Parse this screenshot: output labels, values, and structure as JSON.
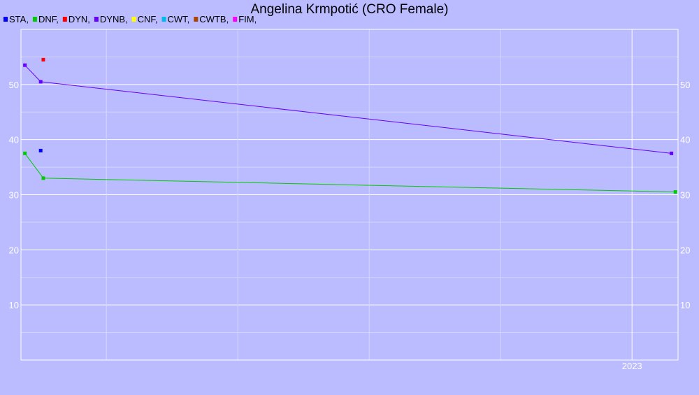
{
  "chart_data": {
    "type": "line",
    "title": "Angelina Krmpotić (CRO Female)",
    "legend": [
      {
        "label": "STA,",
        "color": "#0000ff"
      },
      {
        "label": "DNF,",
        "color": "#00cc00"
      },
      {
        "label": "DYN,",
        "color": "#ff0000"
      },
      {
        "label": "DYNB,",
        "color": "#6600ff"
      },
      {
        "label": "CNF,",
        "color": "#ffff00"
      },
      {
        "label": "CWT,",
        "color": "#00bbee"
      },
      {
        "label": "CWTB,",
        "color": "#aa4400"
      },
      {
        "label": "FIM,",
        "color": "#ff00ff"
      }
    ],
    "legend_position": "top-left",
    "y_ticks": [
      "10",
      "20",
      "30",
      "40",
      "50"
    ],
    "y_tick_values": [
      10,
      20,
      30,
      40,
      50
    ],
    "ylim": [
      0,
      60
    ],
    "x_ticks": [
      "2023"
    ],
    "x_tick_values": [
      2023.0
    ],
    "xlim": [
      2018.35,
      2023.35
    ],
    "grid": true,
    "series": [
      {
        "name": "STA,",
        "color": "#0000ff",
        "x": [
          2018.5
        ],
        "y": [
          38.0
        ]
      },
      {
        "name": "DNF,",
        "color": "#00cc00",
        "x": [
          2018.38,
          2018.52,
          2023.33
        ],
        "y": [
          37.5,
          33.0,
          30.5
        ]
      },
      {
        "name": "DYN,",
        "color": "#ff0000",
        "x": [
          2018.52
        ],
        "y": [
          54.5
        ]
      },
      {
        "name": "DYNB,",
        "color": "#6600ff",
        "x": [
          2018.38,
          2018.5,
          2023.3
        ],
        "y": [
          53.5,
          50.5,
          37.5
        ]
      }
    ]
  }
}
